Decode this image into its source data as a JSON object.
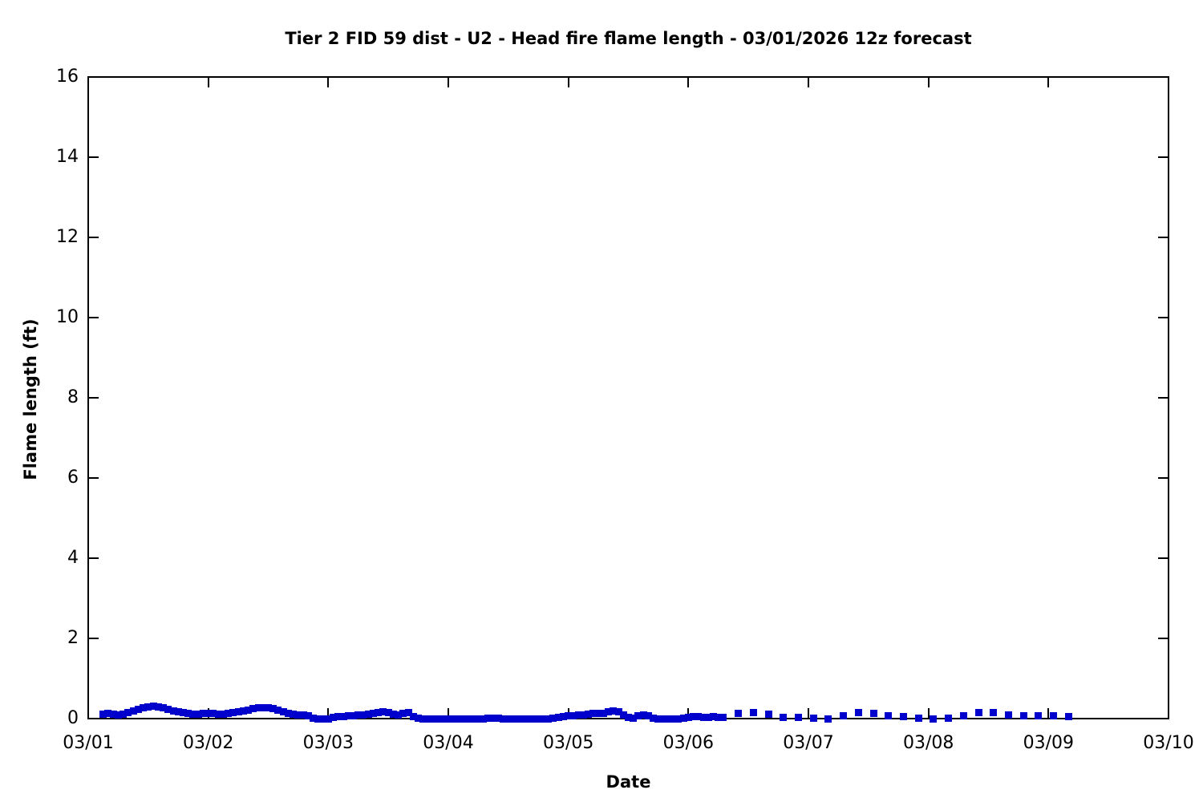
{
  "chart_data": {
    "type": "scatter",
    "title": "Tier 2 FID 59 dist - U2 - Head fire flame length - 03/01/2026 12z forecast",
    "xlabel": "Date",
    "ylabel": "Flame length (ft)",
    "x_tick_labels": [
      "03/01",
      "03/02",
      "03/03",
      "03/04",
      "03/05",
      "03/06",
      "03/07",
      "03/08",
      "03/09",
      "03/10"
    ],
    "x_range_hours": [
      0,
      216
    ],
    "ylim": [
      0,
      16
    ],
    "yticks": [
      0,
      2,
      4,
      6,
      8,
      10,
      12,
      14,
      16
    ],
    "grid": false,
    "legend": "none",
    "series": [
      {
        "name": "head-fire-flame-length",
        "color": "#0000CC",
        "marker": "square",
        "units": "ft",
        "points_hours_vs_ft": [
          [
            3,
            0.12
          ],
          [
            4,
            0.13
          ],
          [
            5,
            0.12
          ],
          [
            6,
            0.1
          ],
          [
            7,
            0.11
          ],
          [
            8,
            0.15
          ],
          [
            9,
            0.2
          ],
          [
            10,
            0.24
          ],
          [
            11,
            0.28
          ],
          [
            12,
            0.3
          ],
          [
            13,
            0.31
          ],
          [
            14,
            0.3
          ],
          [
            15,
            0.27
          ],
          [
            16,
            0.24
          ],
          [
            17,
            0.2
          ],
          [
            18,
            0.17
          ],
          [
            19,
            0.15
          ],
          [
            20,
            0.13
          ],
          [
            21,
            0.12
          ],
          [
            22,
            0.12
          ],
          [
            23,
            0.13
          ],
          [
            24,
            0.13
          ],
          [
            25,
            0.13
          ],
          [
            26,
            0.12
          ],
          [
            27,
            0.12
          ],
          [
            28,
            0.13
          ],
          [
            29,
            0.15
          ],
          [
            30,
            0.17
          ],
          [
            31,
            0.2
          ],
          [
            32,
            0.22
          ],
          [
            33,
            0.25
          ],
          [
            34,
            0.27
          ],
          [
            35,
            0.28
          ],
          [
            36,
            0.28
          ],
          [
            37,
            0.26
          ],
          [
            38,
            0.22
          ],
          [
            39,
            0.18
          ],
          [
            40,
            0.14
          ],
          [
            41,
            0.12
          ],
          [
            42,
            0.1
          ],
          [
            43,
            0.09
          ],
          [
            44,
            0.08
          ],
          [
            45,
            0.02
          ],
          [
            46,
            0.0
          ],
          [
            47,
            0.0
          ],
          [
            48,
            0.0
          ],
          [
            49,
            0.03
          ],
          [
            50,
            0.05
          ],
          [
            51,
            0.06
          ],
          [
            52,
            0.07
          ],
          [
            53,
            0.08
          ],
          [
            54,
            0.09
          ],
          [
            55,
            0.1
          ],
          [
            56,
            0.12
          ],
          [
            57,
            0.14
          ],
          [
            58,
            0.16
          ],
          [
            59,
            0.17
          ],
          [
            60,
            0.16
          ],
          [
            61,
            0.12
          ],
          [
            62,
            0.1
          ],
          [
            63,
            0.13
          ],
          [
            64,
            0.15
          ],
          [
            65,
            0.05
          ],
          [
            66,
            0.02
          ],
          [
            67,
            0.0
          ],
          [
            68,
            0.0
          ],
          [
            69,
            0.0
          ],
          [
            70,
            0.0
          ],
          [
            71,
            0.0
          ],
          [
            72,
            0.0
          ],
          [
            73,
            0.0
          ],
          [
            74,
            0.0
          ],
          [
            75,
            0.0
          ],
          [
            76,
            0.0
          ],
          [
            77,
            0.0
          ],
          [
            78,
            0.0
          ],
          [
            79,
            0.0
          ],
          [
            80,
            0.01
          ],
          [
            81,
            0.01
          ],
          [
            82,
            0.01
          ],
          [
            83,
            0.0
          ],
          [
            84,
            0.0
          ],
          [
            85,
            0.0
          ],
          [
            86,
            0.0
          ],
          [
            87,
            0.0
          ],
          [
            88,
            0.0
          ],
          [
            89,
            0.0
          ],
          [
            90,
            0.0
          ],
          [
            91,
            0.0
          ],
          [
            92,
            0.0
          ],
          [
            93,
            0.02
          ],
          [
            94,
            0.04
          ],
          [
            95,
            0.06
          ],
          [
            96,
            0.08
          ],
          [
            97,
            0.08
          ],
          [
            98,
            0.09
          ],
          [
            99,
            0.1
          ],
          [
            100,
            0.12
          ],
          [
            101,
            0.13
          ],
          [
            102,
            0.13
          ],
          [
            103,
            0.14
          ],
          [
            104,
            0.17
          ],
          [
            105,
            0.19
          ],
          [
            106,
            0.18
          ],
          [
            107,
            0.1
          ],
          [
            108,
            0.03
          ],
          [
            109,
            0.02
          ],
          [
            110,
            0.08
          ],
          [
            111,
            0.1
          ],
          [
            112,
            0.08
          ],
          [
            113,
            0.02
          ],
          [
            114,
            0.0
          ],
          [
            115,
            0.0
          ],
          [
            116,
            0.0
          ],
          [
            117,
            0.0
          ],
          [
            118,
            0.0
          ],
          [
            119,
            0.02
          ],
          [
            120,
            0.04
          ],
          [
            121,
            0.05
          ],
          [
            122,
            0.05
          ],
          [
            123,
            0.04
          ],
          [
            124,
            0.04
          ],
          [
            125,
            0.05
          ],
          [
            126,
            0.04
          ],
          [
            127,
            0.03
          ],
          [
            130,
            0.13
          ],
          [
            133,
            0.16
          ],
          [
            136,
            0.11
          ],
          [
            139,
            0.04
          ],
          [
            142,
            0.04
          ],
          [
            145,
            0.01
          ],
          [
            148,
            0.0
          ],
          [
            151,
            0.08
          ],
          [
            154,
            0.15
          ],
          [
            157,
            0.13
          ],
          [
            160,
            0.07
          ],
          [
            163,
            0.05
          ],
          [
            166,
            0.01
          ],
          [
            169,
            0.0
          ],
          [
            172,
            0.01
          ],
          [
            175,
            0.08
          ],
          [
            178,
            0.15
          ],
          [
            181,
            0.16
          ],
          [
            184,
            0.1
          ],
          [
            187,
            0.07
          ],
          [
            190,
            0.08
          ],
          [
            193,
            0.07
          ],
          [
            196,
            0.06
          ]
        ]
      }
    ]
  }
}
